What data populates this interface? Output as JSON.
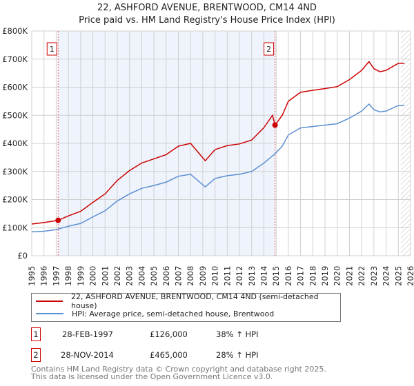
{
  "chart_data": {
    "type": "line",
    "title": "22, ASHFORD AVENUE, BRENTWOOD, CM14 4ND",
    "subtitle": "Price paid vs. HM Land Registry's House Price Index (HPI)",
    "xlim": [
      1995,
      2026
    ],
    "ylim": [
      0,
      800000
    ],
    "yticks": [
      {
        "v": 0,
        "label": "£0"
      },
      {
        "v": 100000,
        "label": "£100K"
      },
      {
        "v": 200000,
        "label": "£200K"
      },
      {
        "v": 300000,
        "label": "£300K"
      },
      {
        "v": 400000,
        "label": "£400K"
      },
      {
        "v": 500000,
        "label": "£500K"
      },
      {
        "v": 600000,
        "label": "£600K"
      },
      {
        "v": 700000,
        "label": "£700K"
      },
      {
        "v": 800000,
        "label": "£800K"
      }
    ],
    "xticks": [
      "1995",
      "1996",
      "1997",
      "1998",
      "1999",
      "2000",
      "2001",
      "2002",
      "2003",
      "2004",
      "2005",
      "2006",
      "2007",
      "2008",
      "2009",
      "2010",
      "2011",
      "2012",
      "2013",
      "2014",
      "2015",
      "2016",
      "2017",
      "2018",
      "2019",
      "2020",
      "2021",
      "2022",
      "2023",
      "2024",
      "2025",
      "2026"
    ],
    "grid": true,
    "series": [
      {
        "name": "22, ASHFORD AVENUE, BRENTWOOD, CM14 4ND (semi-detached house)",
        "color": "#cc0000",
        "x": [
          1995,
          1996,
          1997.16,
          1998,
          1999,
          2000,
          2001,
          2002,
          2003,
          2004,
          2005,
          2006,
          2007,
          2008,
          2009.2,
          2010,
          2011,
          2012,
          2013,
          2014,
          2014.7,
          2014.91,
          2015.5,
          2016,
          2017,
          2018,
          2019,
          2020,
          2021,
          2022,
          2022.6,
          2023,
          2023.5,
          2024,
          2025,
          2025.5
        ],
        "y": [
          113000,
          118000,
          126000,
          142000,
          158000,
          190000,
          220000,
          268000,
          303000,
          330000,
          345000,
          360000,
          390000,
          400000,
          338000,
          378000,
          392000,
          398000,
          412000,
          456000,
          500000,
          465000,
          500000,
          550000,
          582000,
          589000,
          595000,
          602000,
          627000,
          660000,
          691000,
          666000,
          655000,
          660000,
          685000,
          685000
        ]
      },
      {
        "name": "HPI: Average price, semi-detached house, Brentwood",
        "color": "#5b8fd4",
        "x": [
          1995,
          1996,
          1997,
          1998,
          1999,
          2000,
          2001,
          2002,
          2003,
          2004,
          2005,
          2006,
          2007,
          2008,
          2009.2,
          2010,
          2011,
          2012,
          2013,
          2014,
          2014.91,
          2015.5,
          2016,
          2017,
          2018,
          2019,
          2020,
          2021,
          2022,
          2022.6,
          2023,
          2023.5,
          2024,
          2025,
          2025.5
        ],
        "y": [
          85000,
          87000,
          93000,
          105000,
          115000,
          138000,
          160000,
          195000,
          220000,
          240000,
          250000,
          262000,
          283000,
          290000,
          245000,
          275000,
          285000,
          290000,
          300000,
          330000,
          363000,
          390000,
          430000,
          455000,
          460000,
          465000,
          470000,
          490000,
          515000,
          540000,
          520000,
          512000,
          515000,
          535000,
          535000
        ]
      }
    ],
    "sales": [
      {
        "id": "1",
        "x": 1997.16,
        "y": 126000,
        "date": "28-FEB-1997",
        "price": "£126,000",
        "hpi": "38% ↑ HPI"
      },
      {
        "id": "2",
        "x": 2014.91,
        "y": 465000,
        "date": "28-NOV-2014",
        "price": "£465,000",
        "hpi": "28% ↑ HPI"
      }
    ],
    "shade": [
      1997.16,
      2014.91
    ],
    "hatch_from": 2025.2
  },
  "footer": [
    "Contains HM Land Registry data © Crown copyright and database right 2025.",
    "This data is licensed under the Open Government Licence v3.0."
  ]
}
